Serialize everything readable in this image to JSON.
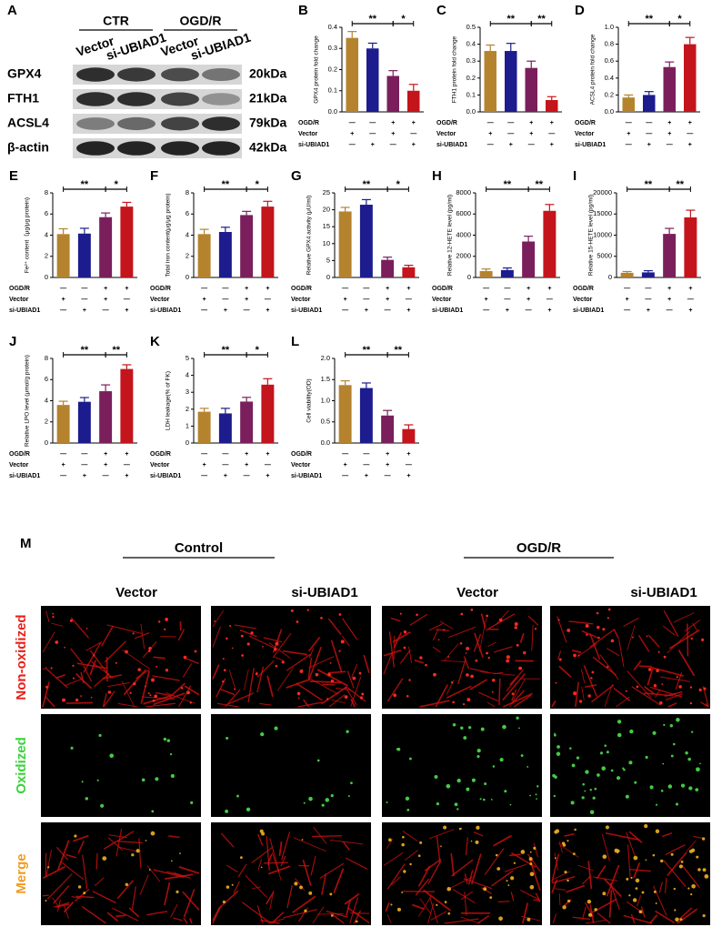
{
  "chart_data": [
    {
      "type": "bar",
      "panel": "B",
      "ylabel": "GPX4 protein fold change",
      "values": [
        0.35,
        0.3,
        0.17,
        0.1
      ],
      "errors": [
        0.03,
        0.025,
        0.025,
        0.03
      ],
      "colors": [
        "#b5832e",
        "#1c1c8e",
        "#7a1f5c",
        "#c4141c"
      ],
      "ylim": [
        0,
        0.4
      ],
      "yticks": [
        {
          "value": 0,
          "label": "0.0"
        },
        0.1,
        0.2,
        0.3,
        0.4
      ],
      "significance": [
        "**",
        "*"
      ],
      "conditions": [
        {
          "name": "OGD/R",
          "signs": [
            "—",
            "—",
            "+",
            "+"
          ]
        },
        {
          "name": "Vector",
          "signs": [
            "+",
            "—",
            "+",
            "—"
          ]
        },
        {
          "name": "si-UBIAD1",
          "signs": [
            "—",
            "+",
            "—",
            "+"
          ]
        }
      ]
    },
    {
      "type": "bar",
      "panel": "C",
      "ylabel": "FTH1 protein fold change",
      "values": [
        0.36,
        0.36,
        0.26,
        0.07
      ],
      "errors": [
        0.035,
        0.045,
        0.04,
        0.02
      ],
      "colors": [
        "#b5832e",
        "#1c1c8e",
        "#7a1f5c",
        "#c4141c"
      ],
      "ylim": [
        0,
        0.5
      ],
      "yticks": [
        {
          "value": 0,
          "label": "0.0"
        },
        0.1,
        0.2,
        0.3,
        0.4,
        0.5
      ],
      "significance": [
        "**",
        "**"
      ],
      "conditions": [
        {
          "name": "OGD/R",
          "signs": [
            "—",
            "—",
            "+",
            "+"
          ]
        },
        {
          "name": "Vector",
          "signs": [
            "+",
            "—",
            "+",
            "—"
          ]
        },
        {
          "name": "si-UBIAD1",
          "signs": [
            "—",
            "+",
            "—",
            "+"
          ]
        }
      ]
    },
    {
      "type": "bar",
      "panel": "D",
      "ylabel": "ACSL4 protein fold change",
      "values": [
        0.17,
        0.2,
        0.53,
        0.8
      ],
      "errors": [
        0.03,
        0.04,
        0.06,
        0.08
      ],
      "colors": [
        "#b5832e",
        "#1c1c8e",
        "#7a1f5c",
        "#c4141c"
      ],
      "ylim": [
        0,
        1.0
      ],
      "yticks": [
        {
          "value": 0,
          "label": "0.0"
        },
        0.2,
        0.4,
        0.6,
        0.8,
        {
          "value": 1.0,
          "label": "1.0"
        }
      ],
      "significance": [
        "**",
        "*"
      ],
      "conditions": [
        {
          "name": "OGD/R",
          "signs": [
            "—",
            "—",
            "+",
            "+"
          ]
        },
        {
          "name": "Vector",
          "signs": [
            "+",
            "—",
            "+",
            "—"
          ]
        },
        {
          "name": "si-UBIAD1",
          "signs": [
            "—",
            "+",
            "—",
            "+"
          ]
        }
      ]
    },
    {
      "type": "bar",
      "panel": "E",
      "ylabel": "Fe²⁺ content（μg/μg protein)",
      "values": [
        4.1,
        4.15,
        5.7,
        6.7
      ],
      "errors": [
        0.5,
        0.5,
        0.4,
        0.4
      ],
      "colors": [
        "#b5832e",
        "#1c1c8e",
        "#7a1f5c",
        "#c4141c"
      ],
      "ylim": [
        0,
        8
      ],
      "yticks": [
        0,
        2,
        4,
        6,
        8
      ],
      "significance": [
        "**",
        "*"
      ],
      "conditions": [
        {
          "name": "OGD/R",
          "signs": [
            "—",
            "—",
            "+",
            "+"
          ]
        },
        {
          "name": "Vector",
          "signs": [
            "+",
            "—",
            "+",
            "—"
          ]
        },
        {
          "name": "si-UBIAD1",
          "signs": [
            "—",
            "+",
            "—",
            "+"
          ]
        }
      ]
    },
    {
      "type": "bar",
      "panel": "F",
      "ylabel": "Total iron content(μg/μg protein)",
      "values": [
        4.1,
        4.3,
        5.9,
        6.7
      ],
      "errors": [
        0.45,
        0.45,
        0.35,
        0.5
      ],
      "colors": [
        "#b5832e",
        "#1c1c8e",
        "#7a1f5c",
        "#c4141c"
      ],
      "ylim": [
        0,
        8
      ],
      "yticks": [
        0,
        2,
        4,
        6,
        8
      ],
      "significance": [
        "**",
        "*"
      ],
      "conditions": [
        {
          "name": "OGD/R",
          "signs": [
            "—",
            "—",
            "+",
            "+"
          ]
        },
        {
          "name": "Vector",
          "signs": [
            "+",
            "—",
            "+",
            "—"
          ]
        },
        {
          "name": "si-UBIAD1",
          "signs": [
            "—",
            "+",
            "—",
            "+"
          ]
        }
      ]
    },
    {
      "type": "bar",
      "panel": "G",
      "ylabel": "Relative GPX4 activity (μU/ml)",
      "values": [
        19.5,
        21.5,
        5.2,
        3.0
      ],
      "errors": [
        1.2,
        1.5,
        0.8,
        0.6
      ],
      "colors": [
        "#b5832e",
        "#1c1c8e",
        "#7a1f5c",
        "#c4141c"
      ],
      "ylim": [
        0,
        25
      ],
      "yticks": [
        0,
        5,
        10,
        15,
        20,
        25
      ],
      "significance": [
        "**",
        "*"
      ],
      "conditions": [
        {
          "name": "OGD/R",
          "signs": [
            "—",
            "—",
            "+",
            "+"
          ]
        },
        {
          "name": "Vector",
          "signs": [
            "+",
            "—",
            "+",
            "—"
          ]
        },
        {
          "name": "si-UBIAD1",
          "signs": [
            "—",
            "+",
            "—",
            "+"
          ]
        }
      ]
    },
    {
      "type": "bar",
      "panel": "H",
      "ylabel": "Relative 12-HETE level (pg/ml)",
      "values": [
        600,
        700,
        3400,
        6300
      ],
      "errors": [
        200,
        200,
        500,
        600
      ],
      "colors": [
        "#b5832e",
        "#1c1c8e",
        "#7a1f5c",
        "#c4141c"
      ],
      "ylim": [
        0,
        8000
      ],
      "yticks": [
        0,
        2000,
        4000,
        6000,
        8000
      ],
      "significance": [
        "**",
        "**"
      ],
      "conditions": [
        {
          "name": "OGD/R",
          "signs": [
            "—",
            "—",
            "+",
            "+"
          ]
        },
        {
          "name": "Vector",
          "signs": [
            "+",
            "—",
            "+",
            "—"
          ]
        },
        {
          "name": "si-UBIAD1",
          "signs": [
            "—",
            "+",
            "—",
            "+"
          ]
        }
      ]
    },
    {
      "type": "bar",
      "panel": "I",
      "ylabel": "Relative 15-HETE level (pg/ml)",
      "values": [
        1100,
        1200,
        10300,
        14200
      ],
      "errors": [
        300,
        400,
        1300,
        1700
      ],
      "colors": [
        "#b5832e",
        "#1c1c8e",
        "#7a1f5c",
        "#c4141c"
      ],
      "ylim": [
        0,
        20000
      ],
      "yticks": [
        0,
        5000,
        10000,
        15000,
        20000
      ],
      "significance": [
        "**",
        "**"
      ],
      "conditions": [
        {
          "name": "OGD/R",
          "signs": [
            "—",
            "—",
            "+",
            "+"
          ]
        },
        {
          "name": "Vector",
          "signs": [
            "+",
            "—",
            "+",
            "—"
          ]
        },
        {
          "name": "si-UBIAD1",
          "signs": [
            "—",
            "+",
            "—",
            "+"
          ]
        }
      ]
    },
    {
      "type": "bar",
      "panel": "J",
      "ylabel": "Relative LPO level (μmol/g protein)",
      "values": [
        3.6,
        3.9,
        4.9,
        7.0
      ],
      "errors": [
        0.35,
        0.4,
        0.6,
        0.4
      ],
      "colors": [
        "#b5832e",
        "#1c1c8e",
        "#7a1f5c",
        "#c4141c"
      ],
      "ylim": [
        0,
        8
      ],
      "yticks": [
        0,
        2,
        4,
        6,
        8
      ],
      "significance": [
        "**",
        "**"
      ],
      "conditions": [
        {
          "name": "OGD/R",
          "signs": [
            "—",
            "—",
            "+",
            "+"
          ]
        },
        {
          "name": "Vector",
          "signs": [
            "+",
            "—",
            "+",
            "—"
          ]
        },
        {
          "name": "si-UBIAD1",
          "signs": [
            "—",
            "+",
            "—",
            "+"
          ]
        }
      ]
    },
    {
      "type": "bar",
      "panel": "K",
      "ylabel": "LDH leakage(% of FK)",
      "values": [
        1.85,
        1.75,
        2.45,
        3.45
      ],
      "errors": [
        0.2,
        0.3,
        0.25,
        0.35
      ],
      "colors": [
        "#b5832e",
        "#1c1c8e",
        "#7a1f5c",
        "#c4141c"
      ],
      "ylim": [
        0,
        5
      ],
      "yticks": [
        0,
        1,
        2,
        3,
        4,
        5
      ],
      "significance": [
        "**",
        "*"
      ],
      "conditions": [
        {
          "name": "OGD/R",
          "signs": [
            "—",
            "—",
            "+",
            "+"
          ]
        },
        {
          "name": "Vector",
          "signs": [
            "+",
            "—",
            "+",
            "—"
          ]
        },
        {
          "name": "si-UBIAD1",
          "signs": [
            "—",
            "+",
            "—",
            "+"
          ]
        }
      ]
    },
    {
      "type": "bar",
      "panel": "L",
      "ylabel": "Cell viability(OD)",
      "values": [
        1.37,
        1.3,
        0.65,
        0.33
      ],
      "errors": [
        0.1,
        0.12,
        0.12,
        0.1
      ],
      "colors": [
        "#b5832e",
        "#1c1c8e",
        "#7a1f5c",
        "#c4141c"
      ],
      "ylim": [
        0,
        2.0
      ],
      "yticks": [
        {
          "value": 0,
          "label": "0.0"
        },
        0.5,
        {
          "value": 1.0,
          "label": "1.0"
        },
        1.5,
        {
          "value": 2.0,
          "label": "2.0"
        }
      ],
      "significance": [
        "**",
        "**"
      ],
      "conditions": [
        {
          "name": "OGD/R",
          "signs": [
            "—",
            "—",
            "+",
            "+"
          ]
        },
        {
          "name": "Vector",
          "signs": [
            "+",
            "—",
            "+",
            "—"
          ]
        },
        {
          "name": "si-UBIAD1",
          "signs": [
            "—",
            "+",
            "—",
            "+"
          ]
        }
      ]
    }
  ],
  "blot": {
    "panel": "A",
    "groups": [
      "CTR",
      "OGD/R"
    ],
    "lanes": [
      "Vector",
      "si-UBIAD1",
      "Vector",
      "si-UBIAD1"
    ],
    "rows": [
      {
        "protein": "GPX4",
        "size": "20kDa"
      },
      {
        "protein": "FTH1",
        "size": "21kDa"
      },
      {
        "protein": "ACSL4",
        "size": "79kDa"
      },
      {
        "protein": "β-actin",
        "size": "42kDa"
      }
    ]
  },
  "microscopy": {
    "panel": "M",
    "groups": [
      "Control",
      "OGD/R"
    ],
    "columns": [
      "Vector",
      "si-UBIAD1",
      "Vector",
      "si-UBIAD1"
    ],
    "rows": [
      "Non-oxidized",
      "Oxidized",
      "Merge"
    ]
  }
}
